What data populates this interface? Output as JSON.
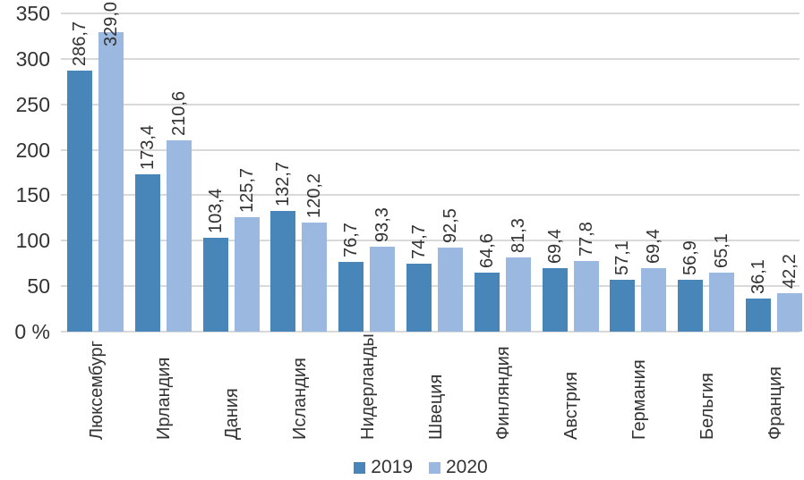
{
  "chart_data": {
    "type": "bar",
    "title": "",
    "categories": [
      "Люксембург",
      "Ирландия",
      "Дания",
      "Исландия",
      "Нидерланды",
      "Швеция",
      "Финляндия",
      "Австрия",
      "Германия",
      "Бельгия",
      "Франция"
    ],
    "series": [
      {
        "name": "2019",
        "color": "#4886BA",
        "values": [
          286.7,
          173.4,
          103.4,
          132.7,
          76.7,
          74.7,
          64.6,
          69.4,
          57.1,
          56.9,
          36.1
        ],
        "labels": [
          "286,7",
          "173,4",
          "103,4",
          "132,7",
          "76,7",
          "74,7",
          "64,6",
          "69,4",
          "57,1",
          "56,9",
          "36,1"
        ]
      },
      {
        "name": "2020",
        "color": "#9BB9E0",
        "values": [
          329.0,
          210.6,
          125.7,
          120.2,
          93.3,
          92.5,
          81.3,
          77.8,
          69.4,
          65.1,
          42.2
        ],
        "labels": [
          "329,0",
          "210,6",
          "125,7",
          "120,2",
          "93,3",
          "92,5",
          "81,3",
          "77,8",
          "69,4",
          "65,1",
          "42,2"
        ]
      }
    ],
    "y_axis": {
      "min": 0,
      "max": 350,
      "step": 50,
      "tick_labels": [
        "0 %",
        "50",
        "100",
        "150",
        "200",
        "250",
        "300",
        "350"
      ]
    },
    "legend": {
      "position": "bottom",
      "entries": [
        "2019",
        "2020"
      ]
    },
    "grid": true,
    "colors": {
      "gridline": "#D9D9D9",
      "axis_line": "#D9D9D9",
      "text": "#333333",
      "background": "#FFFFFF"
    }
  }
}
